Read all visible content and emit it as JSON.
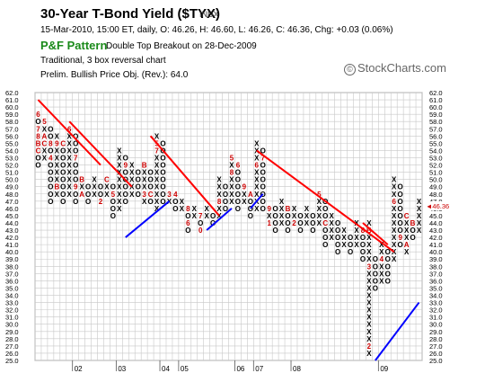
{
  "header": {
    "title": "30-Year T-Bond Yield ($TYX)",
    "symbol_type": "INDX",
    "info_line": "15-Mar-2010, 15:00 ET, daily, O: 46.26, H: 46.60, L: 46.26, C: 46.36, Chg: +0.03 (0.06%)",
    "pattern_label": "P&F Pattern",
    "pattern_signal": "Double Top Breakout on 28-Dec-2009",
    "method": "Traditional, 3 box reversal chart",
    "price_objective": "Prelim. Bullish Price Obj. (Rev.): 64.0"
  },
  "brand": {
    "name": "StockCharts.com",
    "symbol": "©"
  },
  "colors": {
    "x_mark": "#000000",
    "o_mark": "#000000",
    "month_digit": "#cc0000",
    "resistance_line": "#ff0000",
    "support_line": "#0000ff",
    "grid": "#c8c8c8",
    "last_price_label": "#cc0000",
    "pattern_label": "#1a8a1a"
  },
  "chart_data": {
    "type": "point-and-figure",
    "box_size": 1,
    "reversal": 3,
    "ylim": [
      25,
      62
    ],
    "y_ticks": [
      "62.0",
      "61.0",
      "60.0",
      "59.0",
      "58.0",
      "57.0",
      "56.0",
      "55.0",
      "54.0",
      "53.0",
      "52.0",
      "51.0",
      "50.0",
      "49.0",
      "48.0",
      "47.0",
      "46.0",
      "45.0",
      "44.0",
      "43.0",
      "42.0",
      "41.0",
      "40.0",
      "39.0",
      "38.0",
      "37.0",
      "36.0",
      "35.0",
      "34.0",
      "33.0",
      "32.0",
      "31.0",
      "30.0",
      "29.0",
      "28.0",
      "27.0",
      "26.0",
      "25.0"
    ],
    "last_price": "46.36",
    "columns": [
      {
        "t": "O",
        "top": 59,
        "bot": 52,
        "m": {
          "59": "6",
          "57": "7",
          "56": "8",
          "55": "B",
          "54": "C"
        }
      },
      {
        "t": "X",
        "top": 58,
        "bot": 53,
        "m": {
          "58": "5",
          "56": "A",
          "55": "C"
        }
      },
      {
        "t": "O",
        "top": 57,
        "bot": 47,
        "m": {
          "55": "8",
          "53": "4"
        }
      },
      {
        "t": "X",
        "top": 56,
        "bot": 48,
        "m": {
          "55": "9",
          "49": "B"
        }
      },
      {
        "t": "O",
        "top": 55,
        "bot": 47,
        "m": {
          "55": "C"
        }
      },
      {
        "t": "X",
        "top": 57,
        "bot": 48,
        "m": {
          "57": "6"
        }
      },
      {
        "t": "O",
        "top": 56,
        "bot": 47,
        "m": {
          "53": "7",
          "49": "9"
        }
      },
      {
        "t": "X",
        "top": 50,
        "bot": 48,
        "m": {
          "50": "B",
          "48": "A"
        }
      },
      {
        "t": "O",
        "top": 49,
        "bot": 47,
        "m": {}
      },
      {
        "t": "X",
        "top": 50,
        "bot": 48,
        "m": {
          "50": "X"
        }
      },
      {
        "t": "O",
        "top": 49,
        "bot": 47,
        "m": {
          "47": "2"
        }
      },
      {
        "t": "X",
        "top": 50,
        "bot": 48,
        "m": {
          "50": "C"
        }
      },
      {
        "t": "O",
        "top": 49,
        "bot": 45,
        "m": {
          "48": "5"
        }
      },
      {
        "t": "X",
        "top": 54,
        "bot": 46,
        "m": {}
      },
      {
        "t": "O",
        "top": 53,
        "bot": 47,
        "m": {
          "52": "9"
        }
      },
      {
        "t": "X",
        "top": 52,
        "bot": 48,
        "m": {}
      },
      {
        "t": "O",
        "top": 51,
        "bot": 48,
        "m": {}
      },
      {
        "t": "X",
        "top": 52,
        "bot": 47,
        "m": {
          "48": "3",
          "52": "B"
        }
      },
      {
        "t": "O",
        "top": 51,
        "bot": 47,
        "m": {
          "48": "C"
        }
      },
      {
        "t": "X",
        "top": 56,
        "bot": 46,
        "m": {
          "55": "5",
          "54": "7"
        }
      },
      {
        "t": "O",
        "top": 55,
        "bot": 47,
        "m": {}
      },
      {
        "t": "X",
        "top": 48,
        "bot": 47,
        "m": {
          "48": "3"
        }
      },
      {
        "t": "O",
        "top": 48,
        "bot": 46,
        "m": {
          "48": "4"
        }
      },
      {
        "t": "X",
        "top": 47,
        "bot": 46,
        "m": {}
      },
      {
        "t": "O",
        "top": 46,
        "bot": 43,
        "m": {
          "46": "8",
          "44": "6"
        }
      },
      {
        "t": "X",
        "top": 46,
        "bot": 45,
        "m": {}
      },
      {
        "t": "O",
        "top": 45,
        "bot": 43,
        "m": {
          "45": "7",
          "43": "0"
        }
      },
      {
        "t": "X",
        "top": 46,
        "bot": 45,
        "m": {}
      },
      {
        "t": "O",
        "top": 45,
        "bot": 44,
        "m": {}
      },
      {
        "t": "X",
        "top": 50,
        "bot": 45,
        "m": {
          "47": "8"
        }
      },
      {
        "t": "O",
        "top": 49,
        "bot": 46,
        "m": {}
      },
      {
        "t": "X",
        "top": 53,
        "bot": 47,
        "m": {
          "53": "5",
          "51": "8"
        }
      },
      {
        "t": "O",
        "top": 52,
        "bot": 46,
        "m": {
          "52": "6"
        }
      },
      {
        "t": "X",
        "top": 49,
        "bot": 47,
        "m": {
          "49": "9"
        }
      },
      {
        "t": "O",
        "top": 48,
        "bot": 45,
        "m": {
          "48": "A"
        }
      },
      {
        "t": "X",
        "top": 55,
        "bot": 46,
        "m": {
          "52": "6",
          "51": "X"
        }
      },
      {
        "t": "O",
        "top": 54,
        "bot": 46,
        "m": {
          "53": "7"
        }
      },
      {
        "t": "X",
        "top": 46,
        "bot": 44,
        "m": {
          "46": "9",
          "44": "1"
        }
      },
      {
        "t": "O",
        "top": 46,
        "bot": 43,
        "m": {}
      },
      {
        "t": "X",
        "top": 47,
        "bot": 44,
        "m": {}
      },
      {
        "t": "O",
        "top": 46,
        "bot": 43,
        "m": {
          "46": "B"
        }
      },
      {
        "t": "X",
        "top": 46,
        "bot": 44,
        "m": {
          "44": "2"
        }
      },
      {
        "t": "O",
        "top": 45,
        "bot": 43,
        "m": {}
      },
      {
        "t": "X",
        "top": 46,
        "bot": 44,
        "m": {}
      },
      {
        "t": "O",
        "top": 45,
        "bot": 43,
        "m": {}
      },
      {
        "t": "X",
        "top": 48,
        "bot": 44,
        "m": {
          "48": "5"
        }
      },
      {
        "t": "O",
        "top": 47,
        "bot": 41,
        "m": {
          "44": "C"
        }
      },
      {
        "t": "X",
        "top": 45,
        "bot": 42,
        "m": {}
      },
      {
        "t": "O",
        "top": 44,
        "bot": 40,
        "m": {}
      },
      {
        "t": "X",
        "top": 43,
        "bot": 41,
        "m": {}
      },
      {
        "t": "O",
        "top": 42,
        "bot": 40,
        "m": {}
      },
      {
        "t": "X",
        "top": 44,
        "bot": 41,
        "m": {}
      },
      {
        "t": "O",
        "top": 43,
        "bot": 39,
        "m": {
          "43": "8"
        }
      },
      {
        "t": "X",
        "top": 44,
        "bot": 26,
        "m": {
          "43": "B",
          "27": "2",
          "38": "3"
        }
      },
      {
        "t": "O",
        "top": 39,
        "bot": 35,
        "m": {}
      },
      {
        "t": "X",
        "top": 41,
        "bot": 36,
        "m": {
          "39": "4"
        }
      },
      {
        "t": "O",
        "top": 40,
        "bot": 36,
        "m": {}
      },
      {
        "t": "X",
        "top": 50,
        "bot": 39,
        "m": {
          "47": "6"
        }
      },
      {
        "t": "O",
        "top": 49,
        "bot": 41,
        "m": {
          "42": "9"
        }
      },
      {
        "t": "X",
        "top": 45,
        "bot": 40,
        "m": {
          "45": "C",
          "41": "A"
        }
      },
      {
        "t": "O",
        "top": 44,
        "bot": 42,
        "m": {
          "44": "B"
        }
      },
      {
        "t": "X",
        "top": 47,
        "bot": 43,
        "m": {}
      }
    ],
    "month_axis": [
      {
        "label": "02",
        "col": 6
      },
      {
        "label": "03",
        "col": 13
      },
      {
        "label": "04",
        "col": 20
      },
      {
        "label": "05",
        "col": 23
      },
      {
        "label": "06",
        "col": 32
      },
      {
        "label": "07",
        "col": 35
      },
      {
        "label": "08",
        "col": 41
      },
      {
        "label": "09",
        "col": 55
      }
    ],
    "trendlines": [
      {
        "kind": "resistance",
        "from": [
          0,
          61
        ],
        "to": [
          10,
          52
        ]
      },
      {
        "kind": "resistance",
        "from": [
          5,
          58
        ],
        "to": [
          15,
          49
        ]
      },
      {
        "kind": "resistance",
        "from": [
          18,
          56
        ],
        "to": [
          29,
          45
        ]
      },
      {
        "kind": "resistance",
        "from": [
          35,
          54
        ],
        "to": [
          57,
          40
        ]
      },
      {
        "kind": "resistance",
        "from": [
          52,
          44
        ],
        "to": [
          56,
          41
        ]
      },
      {
        "kind": "support",
        "from": [
          14,
          42
        ],
        "to": [
          21,
          47
        ]
      },
      {
        "kind": "support",
        "from": [
          27,
          43
        ],
        "to": [
          31,
          46
        ]
      },
      {
        "kind": "support",
        "from": [
          34,
          46
        ],
        "to": [
          36,
          48
        ]
      },
      {
        "kind": "support",
        "from": [
          54,
          25
        ],
        "to": [
          61,
          33
        ]
      }
    ]
  }
}
